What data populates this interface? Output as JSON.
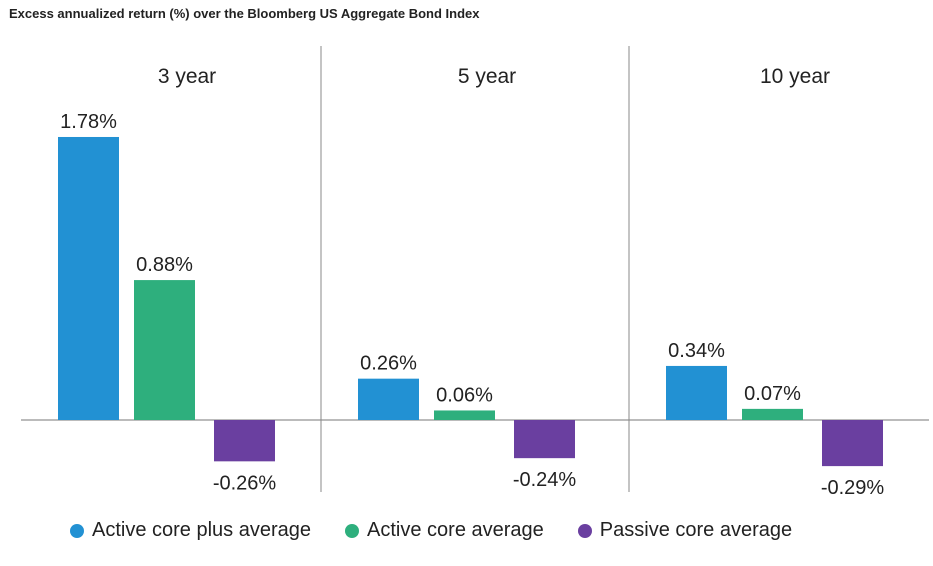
{
  "chart_data": {
    "type": "bar",
    "title": "Excess annualized return (%) over the Bloomberg US Aggregate Bond Index",
    "categories": [
      "3 year",
      "5 year",
      "10 year"
    ],
    "series": [
      {
        "name": "Active core plus average",
        "color": "#2291d3",
        "values": [
          1.78,
          0.26,
          0.34
        ],
        "labels": [
          "1.78%",
          "0.26%",
          "0.34%"
        ]
      },
      {
        "name": "Active core average",
        "color": "#2eaf7d",
        "values": [
          0.88,
          0.06,
          0.07
        ],
        "labels": [
          "0.88%",
          "0.06%",
          "0.07%"
        ]
      },
      {
        "name": "Passive core average",
        "color": "#6a3fa0",
        "values": [
          -0.26,
          -0.24,
          -0.29
        ],
        "labels": [
          "-0.26%",
          "-0.24%",
          "-0.29%"
        ]
      }
    ],
    "grid": false,
    "legend_position": "bottom"
  }
}
